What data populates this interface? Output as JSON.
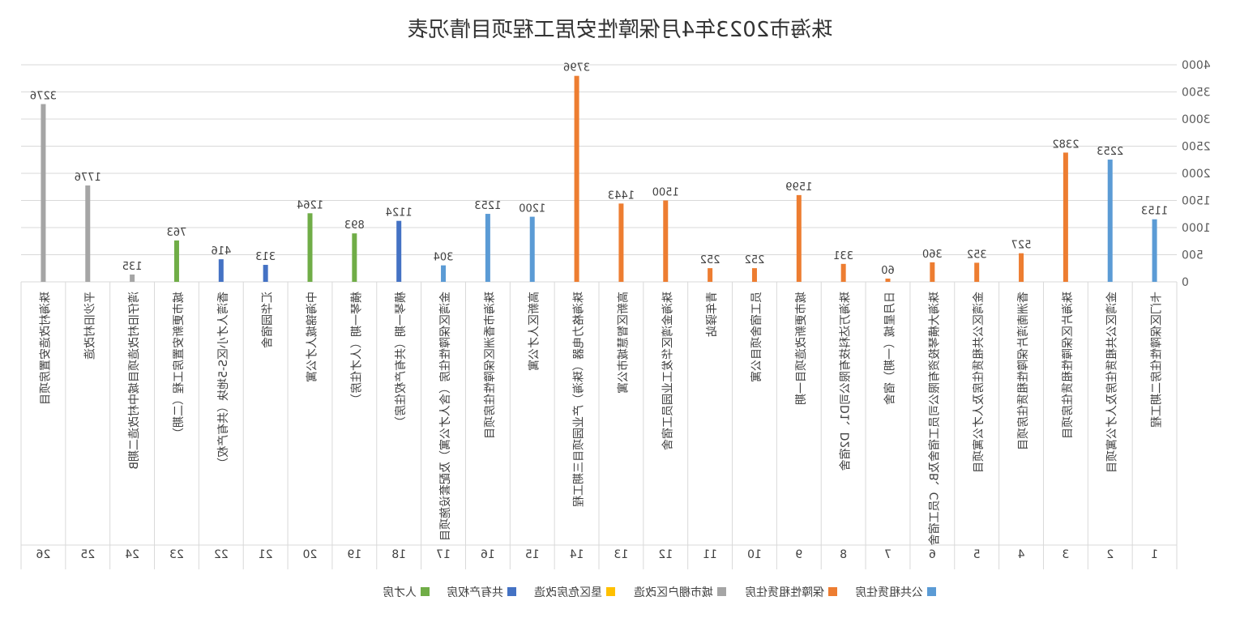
{
  "chart_data": {
    "type": "bar",
    "title": "珠海市2023年4月保障性安居工程项目情况表",
    "ylim": [
      0,
      4000
    ],
    "yticks": [
      0,
      500,
      1000,
      1500,
      2000,
      2500,
      3000,
      3500,
      4000
    ],
    "grid": true,
    "legend_position": "bottom",
    "mirrored": true,
    "series": [
      {
        "name": "公共租赁住房",
        "color": "#5B9BD5"
      },
      {
        "name": "保障性租赁住房",
        "color": "#ED7D31"
      },
      {
        "name": "城市棚户区改造",
        "color": "#A5A5A5"
      },
      {
        "name": "垦区危房改造",
        "color": "#FFC000"
      },
      {
        "name": "共有产权房",
        "color": "#4472C4"
      },
      {
        "name": "人才房",
        "color": "#70AD47"
      }
    ],
    "categories": [
      {
        "index": "1",
        "name": "卡门区保障性住房二期工程",
        "value": 1153,
        "series": 0
      },
      {
        "name": "金湾区公共租赁住房及人才公寓项目",
        "index": "2",
        "value": 2253,
        "series": 0
      },
      {
        "index": "3",
        "name": "珠海片区保障性租赁住房项目",
        "value": 2382,
        "series": 1
      },
      {
        "index": "4",
        "name": "香洲南湾片保障性租赁住房项目",
        "value": 527,
        "series": 1
      },
      {
        "index": "5",
        "name": "金湾区公共租赁住房及人才公寓项目",
        "value": 352,
        "series": 1
      },
      {
        "index": "6",
        "name": "珠海大横琴投资有限公司员工宿舍及B、C员工宿舍",
        "value": 360,
        "series": 1
      },
      {
        "index": "7",
        "name": "日月星城（一期）宿舍",
        "value": 60,
        "series": 1
      },
      {
        "index": "8",
        "name": "珠海万达科技有限公司D1、D2宿舍",
        "value": 331,
        "series": 1
      },
      {
        "index": "9",
        "name": "城市更新改造项目一期",
        "value": 1599,
        "series": 1
      },
      {
        "index": "10",
        "name": "员工宿舍项目公寓",
        "value": 252,
        "series": 1
      },
      {
        "index": "11",
        "name": "青年驿站",
        "value": 252,
        "series": 1
      },
      {
        "index": "12",
        "name": "珠海金湾区华发工业园员工宿舍",
        "value": 1500,
        "series": 1
      },
      {
        "index": "13",
        "name": "高新区智慧城市公寓",
        "value": 1443,
        "series": 1
      },
      {
        "index": "14",
        "name": "珠海格力电器（珠海）产业园项目三期工程",
        "value": 3796,
        "series": 1
      },
      {
        "index": "15",
        "name": "高新区人才公寓",
        "value": 1200,
        "series": 0
      },
      {
        "index": "16",
        "name": "珠海市香洲区保障性住房项目",
        "value": 1253,
        "series": 0
      },
      {
        "index": "17",
        "name": "金湾区保障性住房（含人才公寓）及配套设施项目",
        "value": 304,
        "series": 0
      },
      {
        "index": "18",
        "name": "横琴一期（共有产权住房）",
        "value": 1124,
        "series": 4
      },
      {
        "index": "19",
        "name": "横琴一期（人才住房）",
        "value": 893,
        "series": 5
      },
      {
        "index": "20",
        "name": "中海锦城人才公寓",
        "value": 1264,
        "series": 5
      },
      {
        "index": "21",
        "name": "汇华园宿舍",
        "value": 313,
        "series": 4
      },
      {
        "index": "22",
        "name": "香湾人才小区S-5地块（共有产权）",
        "value": 416,
        "series": 4
      },
      {
        "index": "23",
        "name": "城市更新安置房工程（二期）",
        "value": 763,
        "series": 5
      },
      {
        "index": "24",
        "name": "湾仔旧村改造项目城中村改造二期B",
        "value": 135,
        "series": 2
      },
      {
        "index": "25",
        "name": "平沙旧村改造",
        "value": 1776,
        "series": 2
      },
      {
        "index": "26",
        "name": "珠海村改造安置房项目",
        "value": 3276,
        "series": 2
      }
    ]
  }
}
